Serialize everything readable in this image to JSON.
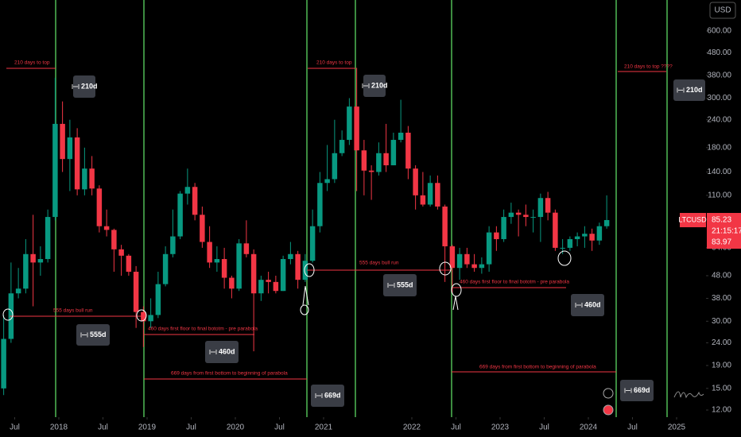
{
  "chart_data": {
    "type": "candlestick",
    "symbol": "LTCUSD",
    "currency": "USD",
    "x": [
      "2017-05",
      "2017-06",
      "2017-07",
      "2017-08",
      "2017-09",
      "2017-10",
      "2017-11",
      "2017-12",
      "2018-01",
      "2018-02",
      "2018-03",
      "2018-04",
      "2018-05",
      "2018-06",
      "2018-07",
      "2018-08",
      "2018-09",
      "2018-10",
      "2018-11",
      "2018-12",
      "2019-01",
      "2019-02",
      "2019-03",
      "2019-04",
      "2019-05",
      "2019-06",
      "2019-07",
      "2019-08",
      "2019-09",
      "2019-10",
      "2019-11",
      "2019-12",
      "2020-01",
      "2020-02",
      "2020-03",
      "2020-04",
      "2020-05",
      "2020-06",
      "2020-07",
      "2020-08",
      "2020-09",
      "2020-10",
      "2020-11",
      "2020-12",
      "2021-01",
      "2021-02",
      "2021-03",
      "2021-04",
      "2021-05",
      "2021-06",
      "2021-07",
      "2021-08",
      "2021-09",
      "2021-10",
      "2021-11",
      "2021-12",
      "2022-01",
      "2022-02",
      "2022-03",
      "2022-04",
      "2022-05",
      "2022-06",
      "2022-07",
      "2022-08",
      "2022-09",
      "2022-10",
      "2022-11",
      "2022-12",
      "2023-01",
      "2023-02",
      "2023-03",
      "2023-04",
      "2023-05",
      "2023-06",
      "2023-07",
      "2023-08",
      "2023-09",
      "2023-10",
      "2023-11",
      "2023-12",
      "2024-01",
      "2024-02",
      "2024-03"
    ],
    "open": [
      15,
      25,
      40,
      42,
      60,
      55,
      57,
      88,
      230,
      160,
      200,
      117,
      145,
      118,
      80,
      77,
      63,
      59,
      50,
      33,
      30,
      32,
      44,
      60,
      72,
      112,
      120,
      90,
      68,
      55,
      57,
      47,
      42,
      67,
      60,
      40,
      46,
      45,
      41,
      57,
      60,
      46,
      56,
      80,
      125,
      130,
      170,
      195,
      275,
      175,
      142,
      140,
      170,
      150,
      195,
      210,
      145,
      110,
      100,
      125,
      98,
      65,
      52,
      60,
      54,
      52,
      54,
      75,
      70,
      88,
      92,
      90,
      88,
      88,
      107,
      92,
      64,
      64,
      70,
      72,
      74,
      69,
      80
    ],
    "high": [
      32,
      55,
      52,
      70,
      90,
      65,
      95,
      370,
      290,
      240,
      220,
      180,
      165,
      122,
      95,
      78,
      66,
      60,
      53,
      35,
      38,
      50,
      65,
      95,
      115,
      145,
      125,
      98,
      80,
      65,
      64,
      48,
      70,
      85,
      63,
      48,
      50,
      48,
      59,
      68,
      62,
      60,
      95,
      140,
      185,
      240,
      215,
      300,
      410,
      195,
      150,
      190,
      230,
      210,
      295,
      225,
      150,
      140,
      135,
      135,
      100,
      66,
      64,
      64,
      60,
      58,
      80,
      80,
      95,
      102,
      95,
      100,
      95,
      112,
      114,
      95,
      70,
      72,
      75,
      80,
      78,
      83,
      110
    ],
    "low": [
      14,
      24,
      38,
      40,
      35,
      48,
      55,
      85,
      140,
      115,
      110,
      110,
      110,
      75,
      72,
      50,
      48,
      48,
      28,
      23,
      28,
      31,
      43,
      58,
      70,
      100,
      85,
      64,
      52,
      50,
      42,
      38,
      41,
      58,
      22,
      37,
      40,
      40,
      41,
      54,
      42,
      45,
      55,
      75,
      115,
      125,
      165,
      185,
      115,
      110,
      105,
      135,
      140,
      150,
      190,
      130,
      95,
      98,
      98,
      95,
      45,
      40,
      46,
      52,
      50,
      49,
      50,
      62,
      68,
      82,
      72,
      80,
      75,
      68,
      85,
      62,
      60,
      62,
      65,
      64,
      62,
      66,
      78
    ],
    "close": [
      25,
      40,
      42,
      60,
      55,
      57,
      88,
      230,
      160,
      200,
      117,
      145,
      118,
      80,
      77,
      63,
      59,
      50,
      33,
      30,
      32,
      44,
      60,
      72,
      112,
      120,
      90,
      68,
      55,
      57,
      47,
      42,
      67,
      60,
      40,
      46,
      45,
      41,
      57,
      60,
      46,
      56,
      80,
      125,
      130,
      170,
      195,
      275,
      175,
      142,
      140,
      170,
      150,
      195,
      210,
      145,
      110,
      100,
      125,
      98,
      65,
      52,
      60,
      54,
      52,
      54,
      75,
      70,
      88,
      92,
      90,
      88,
      88,
      107,
      92,
      64,
      64,
      70,
      72,
      74,
      69,
      80,
      85.23
    ],
    "up_color": "#089981",
    "down_color": "#f23645",
    "log_scale": true,
    "grid": false,
    "xlim": [
      "2017-05",
      "2025-05"
    ],
    "xticks": [
      {
        "value": "2017-07",
        "label": "Jul"
      },
      {
        "value": "2018-01",
        "label": "2018"
      },
      {
        "value": "2018-07",
        "label": "Jul"
      },
      {
        "value": "2019-01",
        "label": "2019"
      },
      {
        "value": "2019-07",
        "label": "Jul"
      },
      {
        "value": "2020-01",
        "label": "2020"
      },
      {
        "value": "2020-07",
        "label": "Jul"
      },
      {
        "value": "2021-01",
        "label": "2021"
      },
      {
        "value": "2022-01",
        "label": "2022"
      },
      {
        "value": "2022-07",
        "label": "Jul"
      },
      {
        "value": "2023-01",
        "label": "2023"
      },
      {
        "value": "2023-07",
        "label": "Jul"
      },
      {
        "value": "2024-01",
        "label": "2024"
      },
      {
        "value": "2024-07",
        "label": "Jul"
      },
      {
        "value": "2025-01",
        "label": "2025"
      }
    ],
    "ylim": [
      11.15,
      826
    ],
    "yticks": [
      {
        "value": 600,
        "label": "600.00"
      },
      {
        "value": 480,
        "label": "480.00"
      },
      {
        "value": 380,
        "label": "380.00"
      },
      {
        "value": 300,
        "label": "300.00"
      },
      {
        "value": 240,
        "label": "240.00"
      },
      {
        "value": 180,
        "label": "180.00"
      },
      {
        "value": 140,
        "label": "140.00"
      },
      {
        "value": 110,
        "label": "110.00"
      },
      {
        "value": 64,
        "label": "64.00"
      },
      {
        "value": 48,
        "label": "48.00"
      },
      {
        "value": 38,
        "label": "38.00"
      },
      {
        "value": 30,
        "label": "30.00"
      },
      {
        "value": 24,
        "label": "24.00"
      },
      {
        "value": 19,
        "label": "19.00"
      },
      {
        "value": 15,
        "label": "15.00"
      },
      {
        "value": 12,
        "label": "12.00"
      }
    ],
    "last_price": 85.23,
    "countdown": "21:15:17",
    "prev_price": 83.97,
    "annotations": [
      "210 days to top",
      "210 days to top",
      "210 days to top ????",
      "555 days bull run",
      "460 days first floor to final bototm - pre parabola",
      "669 days from first bottom to beginning of parabola",
      "555 days bull run",
      "460 days first floor to final bototm - pre parabola",
      "669 days from first bottom to beginning of parabola"
    ],
    "measures": [
      "210d",
      "210d",
      "210d",
      "555d",
      "460d",
      "669d",
      "555d",
      "460d",
      "669d"
    ]
  }
}
